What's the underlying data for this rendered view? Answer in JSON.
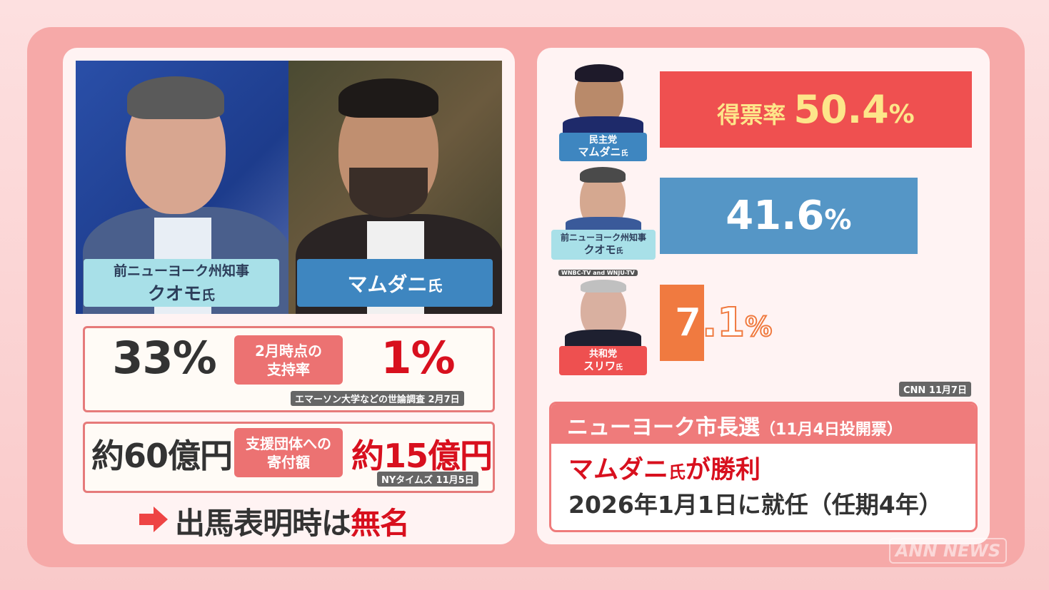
{
  "left": {
    "photo_left_label": {
      "line1": "前ニューヨーク州知事",
      "line2": "クオモ",
      "suffix": "氏"
    },
    "photo_right_label": {
      "name": "マムダニ",
      "suffix": "氏"
    },
    "support": {
      "left_value": "33%",
      "tag_line1": "2月時点の",
      "tag_line2": "支持率",
      "right_value": "1%",
      "source": "エマーソン大学などの世論調査 2月7日"
    },
    "donations": {
      "left_value": "約60億円",
      "tag_line1": "支援団体への",
      "tag_line2": "寄付額",
      "right_value": "約15億円",
      "source": "NYタイムズ 11月5日"
    },
    "footer": {
      "text": "出馬表明時は",
      "highlight": "無名"
    }
  },
  "right": {
    "candidates": [
      {
        "party": "民主党",
        "name": "マムダニ",
        "suffix": "氏",
        "label_color": "#3e86c0"
      },
      {
        "party": "前ニューヨーク州知事",
        "name": "クオモ",
        "suffix": "氏",
        "label_color": "#a8e0e8"
      },
      {
        "party": "共和党",
        "name": "スリワ",
        "suffix": "氏",
        "label_color": "#ee5050",
        "photo_credit": "WNBC-TV and WNJU-TV"
      }
    ],
    "bar_prefix": "得票率",
    "source": "CNN 11月7日",
    "result": {
      "title": "ニューヨーク市長選",
      "title_note": "（11月4日投開票）",
      "line1_name": "マムダニ",
      "line1_suffix": "氏",
      "line1_rest": "が勝利",
      "line2": "2026年1月1日に就任（任期4年）"
    }
  },
  "chart_data": {
    "type": "bar",
    "orientation": "horizontal",
    "categories": [
      "マムダニ",
      "クオモ",
      "スリワ"
    ],
    "values": [
      50.4,
      41.6,
      7.1
    ],
    "value_labels": [
      "50.4",
      "41.6",
      "7.1"
    ],
    "unit": "%",
    "colors": [
      "#ef5050",
      "#5596c6",
      "#f07a40"
    ]
  },
  "watermark": "ANN NEWS"
}
